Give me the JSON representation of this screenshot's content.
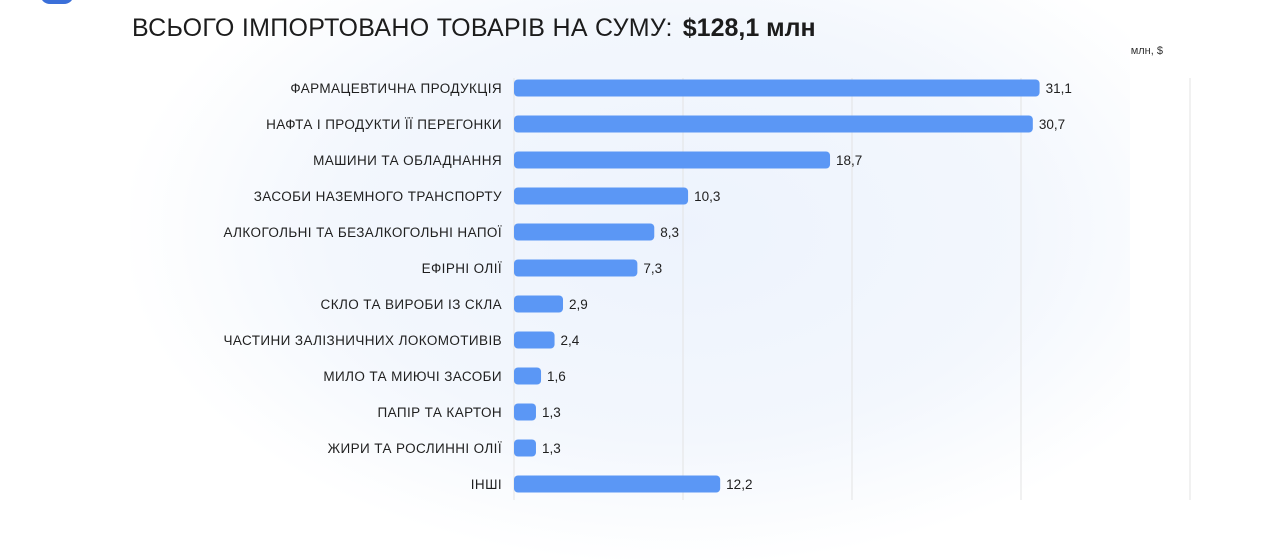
{
  "header": {
    "title": "ВСЬОГО ІМПОРТОВАНО ТОВАРІВ НА СУМУ:",
    "total": "$128,1 млн"
  },
  "colors": {
    "bar": "#5b97f5",
    "grid": "#e3e3e3",
    "text": "#1f1f1f"
  },
  "chart_data": {
    "type": "bar",
    "orientation": "horizontal",
    "unit_label": "млн, $",
    "categories": [
      "ФАРМАЦЕВТИЧНА ПРОДУКЦІЯ",
      "НАФТА І ПРОДУКТИ ЇЇ ПЕРЕГОНКИ",
      "МАШИНИ ТА ОБЛАДНАННЯ",
      "ЗАСОБИ НАЗЕМНОГО ТРАНСПОРТУ",
      "АЛКОГОЛЬНІ ТА БЕЗАЛКОГОЛЬНІ НАПОЇ",
      "ЕФІРНІ ОЛІЇ",
      "СКЛО ТА ВИРОБИ ІЗ СКЛА",
      "ЧАСТИНИ ЗАЛІЗНИЧНИХ ЛОКОМОТИВІВ",
      "МИЛО ТА МИЮЧІ ЗАСОБИ",
      "ПАПІР ТА КАРТОН",
      "ЖИРИ ТА РОСЛИННІ ОЛІЇ",
      "ІНШІ"
    ],
    "values": [
      31.1,
      30.7,
      18.7,
      10.3,
      8.3,
      7.3,
      2.9,
      2.4,
      1.6,
      1.3,
      1.3,
      12.2
    ],
    "value_labels": [
      "31,1",
      "30,7",
      "18,7",
      "10,3",
      "8,3",
      "7,3",
      "2,9",
      "2,4",
      "1,6",
      "1,3",
      "1,3",
      "12,2"
    ],
    "xlim": [
      0,
      40
    ],
    "grid": true
  }
}
